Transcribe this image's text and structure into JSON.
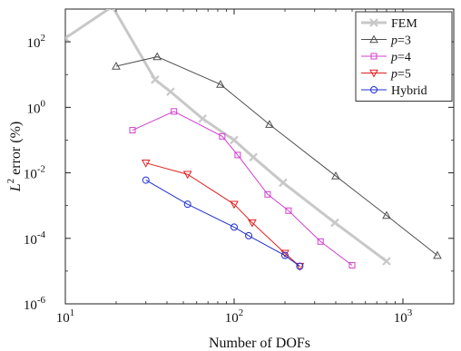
{
  "chart_data": {
    "type": "line",
    "xscale": "log",
    "yscale": "log",
    "xlim": [
      10,
      2000
    ],
    "ylim": [
      1e-06,
      1000
    ],
    "xlabel": "Number of DOFs",
    "ylabel": "L² error (%)",
    "xticks": [
      {
        "value": 10,
        "base": "10",
        "exp": "1"
      },
      {
        "value": 100,
        "base": "10",
        "exp": "2"
      },
      {
        "value": 1000,
        "base": "10",
        "exp": "3"
      }
    ],
    "yticks": [
      {
        "value": 1e-06,
        "base": "10",
        "exp": "-6"
      },
      {
        "value": 0.0001,
        "base": "10",
        "exp": "-4"
      },
      {
        "value": 0.01,
        "base": "10",
        "exp": "-2"
      },
      {
        "value": 1,
        "base": "10",
        "exp": "0"
      },
      {
        "value": 100,
        "base": "10",
        "exp": "2"
      }
    ],
    "grid": false,
    "legend_position": "top-right",
    "series": [
      {
        "name": "FEM",
        "label_prefix": "",
        "label_suffix": "FEM",
        "color": "#c8c8c8",
        "marker": "x",
        "stroke_width": 3,
        "x": [
          10,
          19,
          34,
          42,
          65,
          100,
          130,
          195,
          395,
          800
        ],
        "y": [
          130,
          1200,
          7,
          3,
          0.45,
          0.1,
          0.03,
          0.005,
          0.0003,
          2e-05
        ]
      },
      {
        "name": "p=3",
        "label_prefix": "p",
        "label_suffix": "=3",
        "color": "#505050",
        "marker": "triangle-up",
        "stroke_width": 1,
        "x": [
          20,
          35,
          83,
          162,
          400,
          800,
          1600
        ],
        "y": [
          18,
          35,
          5,
          0.3,
          0.008,
          0.0005,
          3e-05
        ]
      },
      {
        "name": "p=4",
        "label_prefix": "p",
        "label_suffix": "=4",
        "color": "#d040d0",
        "marker": "square",
        "stroke_width": 1,
        "x": [
          25,
          44,
          85,
          105,
          158,
          210,
          325,
          500
        ],
        "y": [
          0.2,
          0.75,
          0.13,
          0.035,
          0.0022,
          0.0007,
          8e-05,
          1.5e-05
        ]
      },
      {
        "name": "p=5",
        "label_prefix": "p",
        "label_suffix": "=5",
        "color": "#e02020",
        "marker": "triangle-down",
        "stroke_width": 1,
        "x": [
          30,
          53,
          100,
          128,
          200,
          245
        ],
        "y": [
          0.02,
          0.009,
          0.0011,
          0.0003,
          3.5e-05,
          1.4e-05
        ]
      },
      {
        "name": "Hybrid",
        "label_prefix": "",
        "label_suffix": "Hybrid",
        "color": "#2030d0",
        "marker": "circle",
        "stroke_width": 1,
        "x": [
          30,
          53,
          100,
          122,
          200,
          245
        ],
        "y": [
          0.006,
          0.0011,
          0.00022,
          0.00012,
          3e-05,
          1.4e-05
        ]
      }
    ]
  }
}
